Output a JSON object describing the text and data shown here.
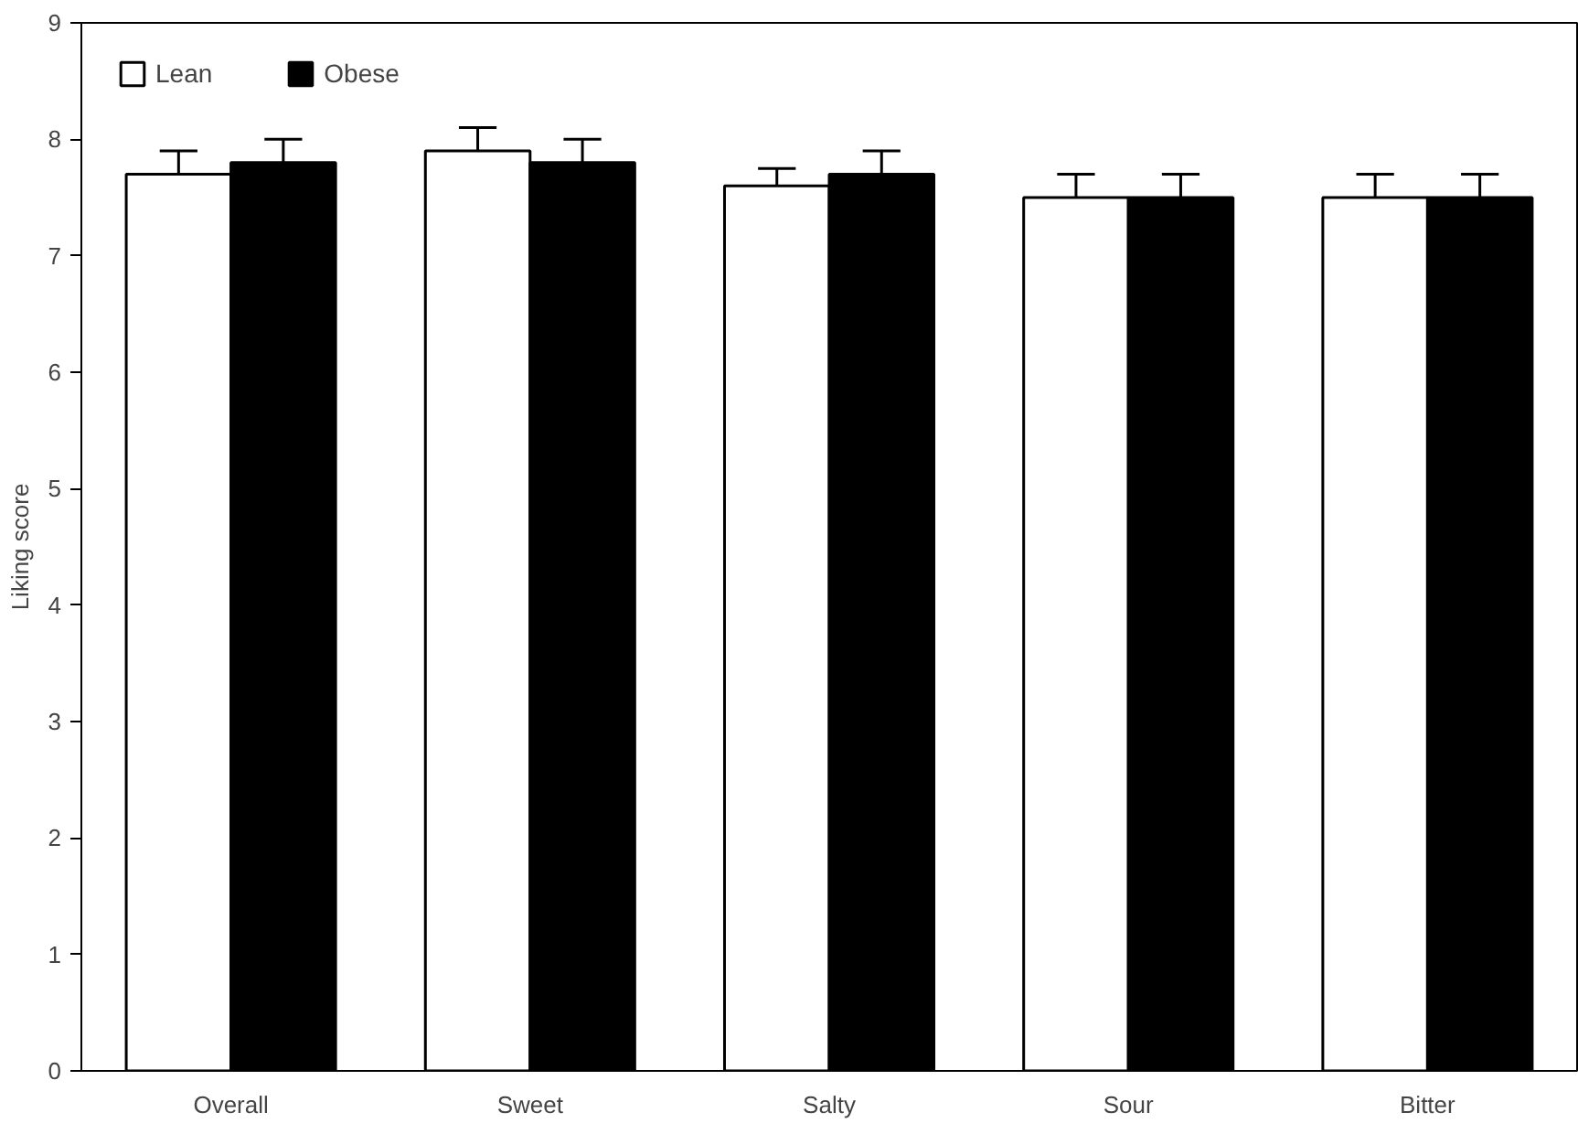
{
  "chart_data": {
    "type": "bar",
    "ylabel": "Liking score",
    "categories": [
      "Overall",
      "Sweet",
      "Salty",
      "Sour",
      "Bitter"
    ],
    "series": [
      {
        "name": "Lean",
        "color": "#ffffff",
        "values": [
          7.7,
          7.9,
          7.6,
          7.5,
          7.5
        ],
        "errors": [
          0.2,
          0.2,
          0.15,
          0.2,
          0.2
        ]
      },
      {
        "name": "Obese",
        "color": "#000000",
        "values": [
          7.8,
          7.8,
          7.7,
          7.5,
          7.5
        ],
        "errors": [
          0.2,
          0.2,
          0.2,
          0.2,
          0.2
        ]
      }
    ],
    "ylim": [
      0,
      9
    ],
    "yticks": [
      0,
      1,
      2,
      3,
      4,
      5,
      6,
      7,
      8,
      9
    ],
    "grid": false,
    "legend": "top left"
  }
}
